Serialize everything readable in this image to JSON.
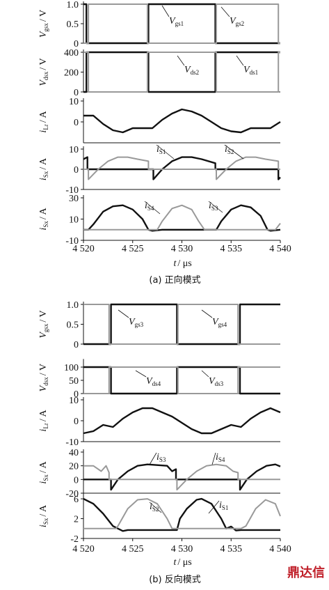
{
  "chart_data": [
    {
      "type": "line",
      "ylabel": {
        "main": "V",
        "sub": "gsx",
        "unit": "/ V"
      },
      "xlim": [
        4520,
        4540
      ],
      "ylim": [
        0,
        1
      ],
      "yticks": [
        0,
        0.5,
        {
          "value": 1,
          "label": "1.0"
        }
      ],
      "series": [
        {
          "color": "#111111",
          "x": [
            4520,
            4520.3,
            4520.3,
            4526.6,
            4526.6,
            4533.4,
            4533.4,
            4540
          ],
          "values": [
            1,
            1,
            0,
            0,
            1,
            1,
            0,
            0
          ]
        },
        {
          "color": "#999999",
          "x": [
            4520,
            4520.5,
            4520.5,
            4526.5,
            4526.5,
            4533.5,
            4533.5,
            4539.8,
            4539.8,
            4540
          ],
          "values": [
            0,
            0,
            1,
            1,
            0,
            0,
            1,
            1,
            0,
            0
          ]
        }
      ],
      "annotations": [
        {
          "main": "V",
          "sub": "gs1"
        },
        {
          "main": "V",
          "sub": "gs2"
        }
      ]
    },
    {
      "type": "line",
      "ylabel": {
        "main": "V",
        "sub": "dsx",
        "unit": "/ V"
      },
      "xlim": [
        4520,
        4540
      ],
      "ylim": [
        0,
        400
      ],
      "yticks": [
        0,
        200,
        400
      ],
      "series": [
        {
          "color": "#111111",
          "x": [
            4520,
            4520.3,
            4520.3,
            4526.6,
            4526.6,
            4533.4,
            4533.4,
            4540
          ],
          "values": [
            0,
            0,
            400,
            400,
            0,
            0,
            400,
            400
          ]
        },
        {
          "color": "#999999",
          "x": [
            4520,
            4520.5,
            4520.5,
            4526.5,
            4526.5,
            4533.5,
            4533.5,
            4539.8,
            4539.8,
            4540
          ],
          "values": [
            400,
            400,
            0,
            0,
            400,
            400,
            0,
            0,
            400,
            400
          ]
        }
      ],
      "annotations": [
        {
          "main": "V",
          "sub": "ds2"
        },
        {
          "main": "V",
          "sub": "ds1"
        }
      ]
    },
    {
      "type": "line",
      "ylabel": {
        "main": "i",
        "sub": "Lr",
        "unit": "/ A"
      },
      "xlim": [
        4520,
        4540
      ],
      "ylim": [
        -10,
        10
      ],
      "yticks": [
        0,
        10
      ],
      "series": [
        {
          "color": "#111111",
          "x": [
            4520,
            4521,
            4522,
            4523,
            4524,
            4525,
            4526,
            4527,
            4528,
            4529,
            4530,
            4531,
            4532,
            4533,
            4534,
            4535,
            4536,
            4537,
            4538,
            4539,
            4540
          ],
          "values": [
            3,
            3,
            -1,
            -4,
            -5,
            -3,
            -3,
            -3,
            1,
            4,
            6,
            5,
            3,
            0,
            -3,
            -4.5,
            -5,
            -3,
            -3,
            -3,
            0
          ]
        }
      ],
      "annotations": []
    },
    {
      "type": "line",
      "ylabel": {
        "main": "i",
        "sub": "Sx",
        "unit": "/ A"
      },
      "xlim": [
        4520,
        4540
      ],
      "ylim": [
        -10,
        10
      ],
      "yticks": [
        -10,
        0,
        10
      ],
      "series": [
        {
          "color": "#111111",
          "x": [
            4520,
            4520.4,
            4520.4,
            4527.1,
            4527.1,
            4528,
            4529,
            4530,
            4531,
            4532,
            4533.4,
            4533.4,
            4539.8,
            4539.8,
            4540
          ],
          "values": [
            5,
            6,
            0,
            0,
            -5,
            0,
            4,
            6,
            6,
            5,
            3,
            0,
            0,
            -5,
            -4
          ]
        },
        {
          "color": "#999999",
          "x": [
            4520,
            4520.5,
            4520.5,
            4521.5,
            4522.5,
            4523.5,
            4524.5,
            4525.5,
            4526.6,
            4526.6,
            4533.5,
            4533.5,
            4534.5,
            4535.5,
            4536.5,
            4537.5,
            4538.5,
            4539.8,
            4539.8,
            4540
          ],
          "values": [
            0,
            0,
            -5,
            0,
            4,
            6,
            6,
            5,
            4,
            0,
            0,
            -5,
            0,
            4,
            6,
            6,
            5,
            4,
            0,
            0
          ]
        }
      ],
      "annotations": [
        {
          "main": "i",
          "sub": "S1"
        },
        {
          "main": "i",
          "sub": "S2"
        }
      ]
    },
    {
      "type": "line",
      "ylabel": {
        "main": "i",
        "sub": "Sx",
        "unit": "/ A"
      },
      "xlim": [
        4520,
        4540
      ],
      "ylim": [
        -10,
        30
      ],
      "yticks": [
        -10,
        10,
        30
      ],
      "xticks": [
        {
          "value": 4520,
          "label": "4 520"
        },
        {
          "value": 4525,
          "label": "4 525"
        },
        {
          "value": 4530,
          "label": "4 530"
        },
        {
          "value": 4535,
          "label": "4 535"
        },
        {
          "value": 4540,
          "label": "4 540"
        }
      ],
      "xlabel": {
        "main": "t",
        "unit": "/ μs"
      },
      "caption": "(a)  正向模式",
      "series": [
        {
          "color": "#111111",
          "x": [
            4520,
            4520.5,
            4521,
            4522,
            4523,
            4524,
            4525,
            4526,
            4526.6,
            4527,
            4528,
            4533,
            4533.5,
            4534,
            4535,
            4536,
            4537,
            4538,
            4538.7,
            4539,
            4540
          ],
          "values": [
            0,
            0,
            5,
            17,
            22,
            23,
            19,
            10,
            0,
            -1,
            0,
            0,
            0,
            8,
            19,
            23,
            21,
            13,
            0,
            -1,
            0
          ]
        },
        {
          "color": "#999999",
          "x": [
            4520,
            4527,
            4527.5,
            4528,
            4529,
            4530,
            4531,
            4531.7,
            4532.3,
            4533,
            4539.5,
            4540
          ],
          "values": [
            0,
            0,
            0,
            8,
            20,
            23,
            19,
            8,
            0,
            0,
            0,
            6
          ]
        }
      ],
      "annotations": [
        {
          "main": "i",
          "sub": "S4"
        },
        {
          "main": "i",
          "sub": "S3"
        }
      ]
    },
    {
      "type": "line",
      "ylabel": {
        "main": "V",
        "sub": "gsx",
        "unit": "/ V"
      },
      "xlim": [
        4520,
        4540
      ],
      "ylim": [
        0,
        1
      ],
      "yticks": [
        0,
        0.5,
        {
          "value": 1,
          "label": "1.0"
        }
      ],
      "series": [
        {
          "color": "#111111",
          "x": [
            4520,
            4522.8,
            4522.8,
            4529.5,
            4529.5,
            4535.9,
            4535.9,
            4540
          ],
          "values": [
            0,
            0,
            1,
            1,
            0,
            0,
            1,
            1
          ]
        },
        {
          "color": "#999999",
          "x": [
            4520,
            4522.6,
            4522.6,
            4529.6,
            4529.6,
            4535.7,
            4535.7,
            4540
          ],
          "values": [
            1,
            1,
            0,
            0,
            1,
            1,
            0,
            0
          ]
        }
      ],
      "annotations": [
        {
          "main": "V",
          "sub": "gs3"
        },
        {
          "main": "V",
          "sub": "gs4"
        }
      ]
    },
    {
      "type": "line",
      "ylabel": {
        "main": "V",
        "sub": "dsx",
        "unit": "/ V"
      },
      "xlim": [
        4520,
        4540
      ],
      "ylim": [
        0,
        120
      ],
      "yticks": [
        0,
        50,
        100
      ],
      "series": [
        {
          "color": "#111111",
          "x": [
            4520,
            4522.8,
            4522.8,
            4529.5,
            4529.5,
            4535.9,
            4535.9,
            4540
          ],
          "values": [
            100,
            100,
            0,
            0,
            100,
            100,
            0,
            0
          ]
        },
        {
          "color": "#999999",
          "x": [
            4520,
            4522.6,
            4522.6,
            4529.6,
            4529.6,
            4535.7,
            4535.7,
            4540
          ],
          "values": [
            0,
            0,
            100,
            100,
            0,
            0,
            100,
            100
          ]
        }
      ],
      "annotations": [
        {
          "main": "V",
          "sub": "ds4"
        },
        {
          "main": "V",
          "sub": "ds3"
        }
      ]
    },
    {
      "type": "line",
      "ylabel": {
        "main": "i",
        "sub": "Lr",
        "unit": "/ A"
      },
      "xlim": [
        4520,
        4540
      ],
      "ylim": [
        -10,
        10
      ],
      "yticks": [
        -10,
        0,
        10
      ],
      "series": [
        {
          "color": "#111111",
          "x": [
            4520,
            4521,
            4522,
            4523,
            4524,
            4525,
            4526,
            4527,
            4528,
            4529,
            4530,
            4531,
            4532,
            4533,
            4534,
            4535,
            4536,
            4537,
            4538,
            4539,
            4540
          ],
          "values": [
            -6,
            -5,
            -2,
            -3,
            1,
            4,
            6,
            6,
            4,
            2,
            -1,
            -4,
            -6,
            -6,
            -4,
            -2,
            -3,
            1,
            4,
            6,
            4
          ]
        }
      ],
      "annotations": []
    },
    {
      "type": "line",
      "ylabel": {
        "main": "i",
        "sub": "Sx",
        "unit": "/ A"
      },
      "xlim": [
        4520,
        4540
      ],
      "ylim": [
        -20,
        40
      ],
      "yticks": [
        -20,
        0,
        20,
        40
      ],
      "series": [
        {
          "color": "#111111",
          "x": [
            4520,
            4522.8,
            4522.8,
            4523.5,
            4524.5,
            4525.5,
            4526.5,
            4527.5,
            4528.5,
            4529,
            4529.4,
            4529.4,
            4535.9,
            4535.9,
            4536.6,
            4537.6,
            4538.6,
            4539.5,
            4540
          ],
          "values": [
            0,
            0,
            -15,
            0,
            12,
            20,
            22,
            21,
            20,
            12,
            15,
            0,
            0,
            -15,
            0,
            12,
            20,
            22,
            19
          ]
        },
        {
          "color": "#999999",
          "x": [
            4520,
            4521,
            4521.8,
            4522.3,
            4522.6,
            4522.6,
            4529.5,
            4529.5,
            4530.5,
            4531.5,
            4532.5,
            4533.5,
            4534.5,
            4535.2,
            4535.7,
            4535.7,
            4540
          ],
          "values": [
            20,
            20,
            12,
            20,
            10,
            0,
            0,
            -15,
            0,
            12,
            20,
            22,
            20,
            12,
            10,
            0,
            0
          ]
        }
      ],
      "annotations": [
        {
          "main": "i",
          "sub": "S3"
        },
        {
          "main": "i",
          "sub": "S4"
        }
      ]
    },
    {
      "type": "line",
      "ylabel": {
        "main": "i",
        "sub": "Sx",
        "unit": "/ A"
      },
      "xlim": [
        4520,
        4540
      ],
      "ylim": [
        -2,
        7
      ],
      "yticks": [
        -2,
        2,
        6
      ],
      "xticks": [
        {
          "value": 4520,
          "label": "4 520"
        },
        {
          "value": 4525,
          "label": "4 525"
        },
        {
          "value": 4530,
          "label": "4 530"
        },
        {
          "value": 4535,
          "label": "4 535"
        },
        {
          "value": 4540,
          "label": "4 540"
        }
      ],
      "xlabel": {
        "main": "t",
        "unit": "/ μs"
      },
      "caption": "(b)  反向模式",
      "series": [
        {
          "color": "#111111",
          "x": [
            4520,
            4521,
            4522,
            4523,
            4523.5,
            4524,
            4524.5,
            4525,
            4529.5,
            4529.8,
            4530.5,
            4531.5,
            4532,
            4533,
            4534,
            4534.5,
            4535,
            4535.5,
            4536,
            4540
          ],
          "values": [
            6,
            5,
            3,
            0.5,
            0,
            -0.5,
            -0.3,
            -0.3,
            -0.3,
            2,
            4,
            5.8,
            6,
            5,
            2,
            0,
            0.4,
            -0.4,
            -0.3,
            -0.3
          ]
        },
        {
          "color": "#999999",
          "x": [
            4520,
            4523.3,
            4523.5,
            4524.5,
            4525.5,
            4526.5,
            4527.5,
            4528.5,
            4529,
            4529.5,
            4536,
            4536.5,
            4537.5,
            4538.5,
            4539.5,
            4540
          ],
          "values": [
            0,
            0,
            0.5,
            4,
            5.8,
            6,
            5,
            2,
            0,
            0,
            0,
            0.5,
            4,
            5.8,
            5,
            2.5
          ]
        }
      ],
      "annotations": [
        {
          "main": "i",
          "sub": "S2"
        },
        {
          "main": "i",
          "sub": "S1"
        }
      ]
    }
  ],
  "watermark": "鼎达信"
}
